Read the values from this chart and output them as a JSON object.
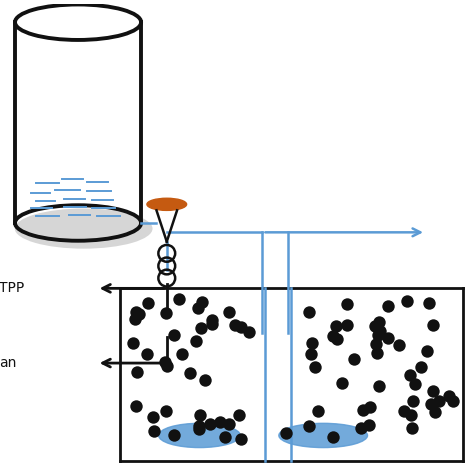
{
  "bg_color": "#ffffff",
  "blue": "#5b9bd5",
  "black": "#111111",
  "orange": "#c55a11",
  "dot_color": "#111111",
  "label_tpp": "TPP",
  "label_an": "an"
}
